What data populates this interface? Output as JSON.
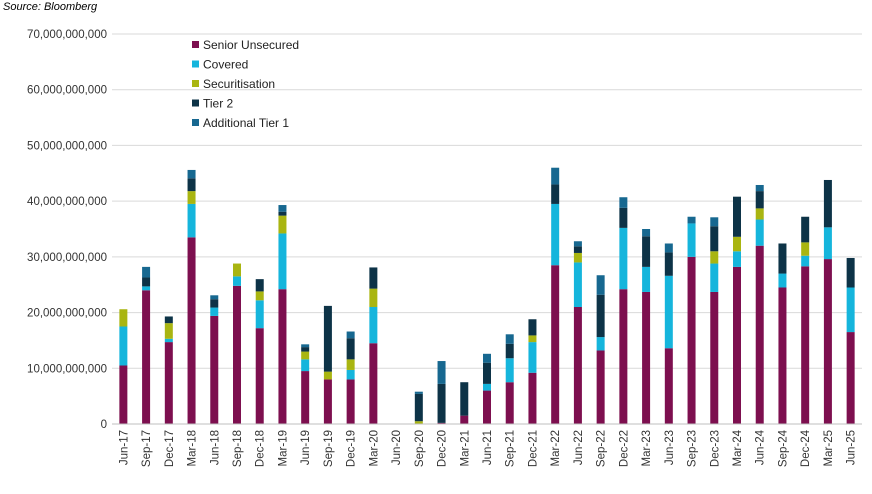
{
  "source": "Source: Bloomberg",
  "chart_data": {
    "type": "bar",
    "stacked": true,
    "title": "",
    "xlabel": "",
    "ylabel": "",
    "ylim": [
      0,
      70000000000
    ],
    "yticks": [
      0,
      10000000000,
      20000000000,
      30000000000,
      40000000000,
      50000000000,
      60000000000,
      70000000000
    ],
    "ytick_labels": [
      "0",
      "10,000,000,000",
      "20,000,000,000",
      "30,000,000,000",
      "40,000,000,000",
      "50,000,000,000",
      "60,000,000,000",
      "70,000,000,000"
    ],
    "grid": true,
    "legend_position": "top-left",
    "categories": [
      "Jun-17",
      "Sep-17",
      "Dec-17",
      "Mar-18",
      "Jun-18",
      "Sep-18",
      "Dec-18",
      "Mar-19",
      "Jun-19",
      "Sep-19",
      "Dec-19",
      "Mar-20",
      "Jun-20",
      "Sep-20",
      "Dec-20",
      "Mar-21",
      "Jun-21",
      "Sep-21",
      "Dec-21",
      "Mar-22",
      "Jun-22",
      "Sep-22",
      "Dec-22",
      "Mar-23",
      "Jun-23",
      "Sep-23",
      "Dec-23",
      "Mar-24",
      "Jun-24",
      "Sep-24",
      "Dec-24",
      "Mar-25",
      "Jun-25"
    ],
    "series": [
      {
        "name": "Senior Unsecured",
        "color": "#7d0f4f",
        "values": [
          10500000000,
          24000000000,
          14700000000,
          33500000000,
          19400000000,
          24800000000,
          17200000000,
          24200000000,
          9500000000,
          8000000000,
          8000000000,
          14500000000,
          0,
          0,
          200000000,
          1500000000,
          6000000000,
          7500000000,
          9200000000,
          28500000000,
          21000000000,
          13200000000,
          24200000000,
          23700000000,
          13600000000,
          30000000000,
          23700000000,
          28200000000,
          32000000000,
          24500000000,
          28300000000,
          29600000000,
          16500000000
        ]
      },
      {
        "name": "Covered",
        "color": "#15b5dc",
        "values": [
          7000000000,
          700000000,
          600000000,
          6000000000,
          1500000000,
          1700000000,
          5000000000,
          10000000000,
          2100000000,
          0,
          1700000000,
          6500000000,
          0,
          0,
          0,
          0,
          1200000000,
          4300000000,
          5500000000,
          11000000000,
          8000000000,
          2400000000,
          11000000000,
          4500000000,
          13000000000,
          6000000000,
          5100000000,
          2800000000,
          4700000000,
          2500000000,
          1900000000,
          5700000000,
          8000000000
        ]
      },
      {
        "name": "Securitisation",
        "color": "#a9b511",
        "values": [
          3100000000,
          0,
          2800000000,
          2300000000,
          0,
          2300000000,
          1600000000,
          3200000000,
          1400000000,
          1400000000,
          1900000000,
          3300000000,
          0,
          500000000,
          0,
          0,
          0,
          0,
          1200000000,
          0,
          1700000000,
          0,
          0,
          0,
          0,
          0,
          2200000000,
          2600000000,
          2000000000,
          0,
          2400000000,
          0,
          0
        ]
      },
      {
        "name": "Tier 2",
        "color": "#0d3347",
        "values": [
          0,
          1600000000,
          1200000000,
          2300000000,
          1500000000,
          0,
          2200000000,
          700000000,
          800000000,
          11800000000,
          3800000000,
          3800000000,
          0,
          4900000000,
          7000000000,
          6000000000,
          3800000000,
          2600000000,
          2900000000,
          3500000000,
          1200000000,
          7600000000,
          3600000000,
          5500000000,
          4200000000,
          0,
          4500000000,
          7200000000,
          3100000000,
          5400000000,
          4600000000,
          8500000000,
          5300000000
        ]
      },
      {
        "name": "Additional Tier 1",
        "color": "#176890",
        "values": [
          0,
          1900000000,
          0,
          1500000000,
          700000000,
          0,
          0,
          1200000000,
          500000000,
          0,
          1200000000,
          0,
          0,
          400000000,
          4100000000,
          0,
          1600000000,
          1700000000,
          0,
          3000000000,
          900000000,
          3500000000,
          1900000000,
          1300000000,
          1600000000,
          1200000000,
          1600000000,
          0,
          1100000000,
          0,
          0,
          0,
          0
        ]
      }
    ]
  }
}
